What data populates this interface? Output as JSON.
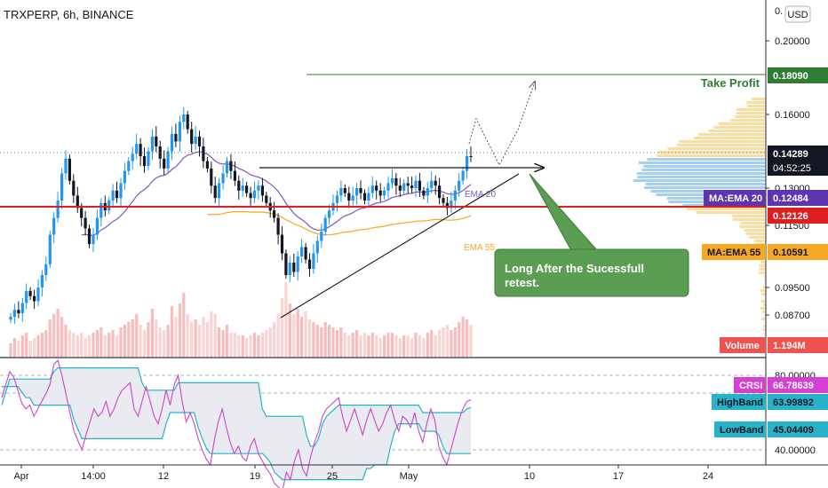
{
  "header": {
    "symbol": "TRXPERP, 6h, BINANCE"
  },
  "currency_button": "USD",
  "chart_data": {
    "type": "candlestick",
    "x_ticks": [
      "Apr",
      "14:00",
      "12",
      "19",
      "25",
      "May",
      "10",
      "17",
      "24"
    ],
    "price_ticks": [
      "0.20000",
      "0.16000",
      "0.13000",
      "0.11500",
      "0.09500",
      "0.08700"
    ],
    "price_ticks_extra": {
      "top": "0.",
      "bottom": "0."
    },
    "osc_ticks": [
      "80.00000",
      "40.00000"
    ],
    "labels": {
      "take_profit_value": "0.18090",
      "take_profit_text": "Take Profit",
      "last_price": "0.14289",
      "countdown": "04:52:25",
      "ema20_tag": "MA:EMA 20",
      "ema20_value": "0.12484",
      "support_value": "0.12126",
      "ema55_tag": "MA:EMA 55",
      "ema55_value": "0.10591",
      "volume_tag": "Volume",
      "volume_value": "1.194M",
      "crsi_tag": "CRSI",
      "crsi_value": "66.78639",
      "highband_tag": "HighBand",
      "highband_value": "63.99892",
      "lowband_tag": "LowBand",
      "lowband_value": "45.04409",
      "ema20_line": "EMA 20",
      "ema55_line": "EMA 55"
    },
    "annotation": "Long After the Sucessfull retest.",
    "levels": {
      "take_profit": 0.1809,
      "last_price": 0.14289,
      "support": 0.12126,
      "resistance": 0.132
    },
    "indicators": {
      "crsi": 66.78639,
      "highband": 63.99892,
      "lowband": 45.04409
    },
    "closes": [
      0.0865,
      0.0885,
      0.0875,
      0.0905,
      0.094,
      0.0925,
      0.091,
      0.095,
      0.099,
      0.1025,
      0.112,
      0.118,
      0.125,
      0.136,
      0.142,
      0.133,
      0.127,
      0.122,
      0.118,
      0.114,
      0.109,
      0.112,
      0.118,
      0.124,
      0.121,
      0.125,
      0.129,
      0.126,
      0.132,
      0.137,
      0.141,
      0.144,
      0.148,
      0.143,
      0.139,
      0.145,
      0.151,
      0.147,
      0.142,
      0.138,
      0.145,
      0.152,
      0.149,
      0.157,
      0.16,
      0.154,
      0.148,
      0.151,
      0.147,
      0.141,
      0.138,
      0.131,
      0.126,
      0.132,
      0.136,
      0.141,
      0.137,
      0.133,
      0.129,
      0.131,
      0.128,
      0.126,
      0.129,
      0.131,
      0.127,
      0.124,
      0.121,
      0.118,
      0.112,
      0.106,
      0.099,
      0.103,
      0.1,
      0.105,
      0.108,
      0.104,
      0.101,
      0.106,
      0.11,
      0.113,
      0.118,
      0.121,
      0.124,
      0.127,
      0.13,
      0.128,
      0.125,
      0.127,
      0.13,
      0.128,
      0.125,
      0.128,
      0.131,
      0.129,
      0.127,
      0.129,
      0.132,
      0.134,
      0.131,
      0.129,
      0.132,
      0.131,
      0.13,
      0.133,
      0.129,
      0.127,
      0.13,
      0.133,
      0.131,
      0.126,
      0.124,
      0.122,
      0.125,
      0.129,
      0.133,
      0.137,
      0.143,
      0.14289
    ],
    "volumes": [
      0.5,
      0.7,
      0.6,
      0.8,
      0.9,
      0.6,
      0.7,
      0.8,
      0.9,
      1.0,
      1.4,
      1.6,
      1.8,
      1.5,
      1.2,
      1.0,
      0.9,
      0.8,
      0.9,
      0.7,
      0.8,
      0.9,
      1.0,
      1.1,
      0.8,
      0.9,
      1.0,
      0.8,
      1.1,
      1.2,
      1.3,
      1.4,
      1.6,
      1.2,
      1.0,
      1.3,
      1.8,
      1.4,
      1.1,
      1.0,
      1.2,
      1.9,
      1.5,
      2.0,
      2.4,
      1.6,
      1.3,
      1.4,
      1.2,
      1.5,
      1.3,
      1.7,
      1.6,
      1.1,
      1.0,
      1.2,
      0.9,
      0.9,
      0.8,
      0.8,
      0.7,
      0.8,
      0.9,
      0.8,
      0.9,
      1.0,
      1.1,
      1.3,
      1.6,
      2.2,
      2.8,
      2.0,
      1.6,
      1.8,
      1.5,
      1.7,
      1.4,
      1.3,
      1.2,
      1.1,
      1.3,
      1.2,
      1.1,
      1.0,
      1.1,
      0.9,
      0.8,
      0.9,
      1.0,
      0.8,
      0.9,
      0.8,
      0.9,
      0.8,
      0.7,
      0.8,
      0.9,
      0.9,
      0.8,
      0.7,
      0.8,
      0.8,
      0.7,
      0.9,
      0.8,
      0.7,
      0.9,
      1.0,
      0.8,
      1.0,
      1.1,
      1.2,
      1.0,
      1.1,
      1.3,
      1.5,
      1.4,
      1.194
    ],
    "crsi": [
      68,
      75,
      82,
      79,
      72,
      65,
      62,
      64,
      58,
      62,
      66,
      70,
      75,
      86,
      88,
      80,
      70,
      60,
      50,
      45,
      40,
      48,
      55,
      62,
      58,
      60,
      66,
      58,
      62,
      68,
      72,
      74,
      76,
      62,
      58,
      66,
      74,
      66,
      58,
      54,
      62,
      72,
      64,
      75,
      80,
      66,
      55,
      60,
      54,
      46,
      40,
      35,
      32,
      45,
      55,
      62,
      52,
      44,
      38,
      42,
      36,
      34,
      42,
      46,
      38,
      34,
      30,
      27,
      22,
      20,
      18,
      28,
      24,
      34,
      40,
      30,
      26,
      36,
      44,
      50,
      58,
      62,
      64,
      66,
      68,
      58,
      50,
      56,
      62,
      55,
      48,
      56,
      62,
      56,
      50,
      54,
      60,
      64,
      56,
      50,
      58,
      56,
      52,
      60,
      50,
      44,
      54,
      62,
      56,
      42,
      36,
      32,
      40,
      48,
      56,
      62,
      66,
      66.78639
    ]
  }
}
